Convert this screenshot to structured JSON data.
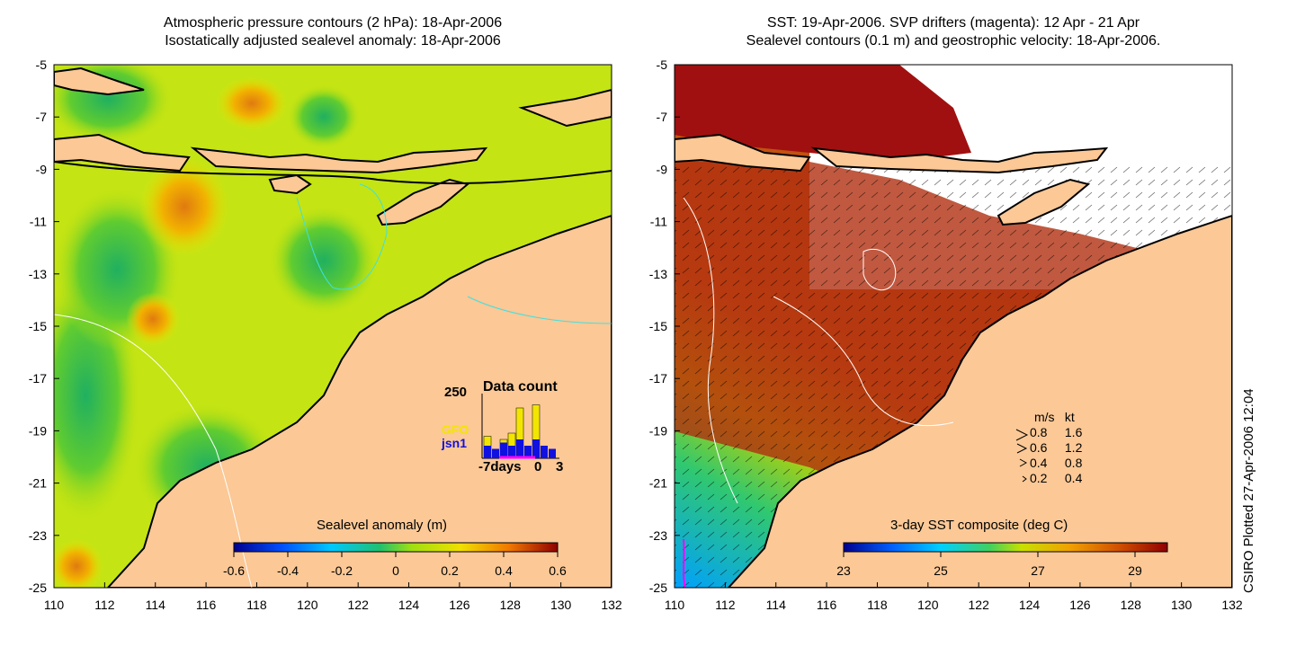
{
  "left_panel": {
    "title_line1": "Atmospheric pressure contours (2 hPa): 18-Apr-2006",
    "title_line2": "Isostatically adjusted sealevel anomaly: 18-Apr-2006",
    "colorbar_label": "Sealevel anomaly (m)",
    "colorbar_ticks": [
      "-0.6",
      "-0.4",
      "-0.2",
      "0",
      "0.2",
      "0.4",
      "0.6"
    ],
    "inset": {
      "title": "Data count",
      "ymax_label": "250",
      "series_labels": [
        "GFO",
        "jsn1"
      ],
      "xlabels": [
        "-7days",
        "0",
        "3"
      ],
      "colors": {
        "GFO": "#f2e600",
        "jsn1": "#1010e0"
      }
    }
  },
  "right_panel": {
    "title_line1": "SST: 19-Apr-2006. SVP drifters (magenta): 12 Apr - 21 Apr",
    "title_line2": "Sealevel contours (0.1 m) and geostrophic velocity: 18-Apr-2006.",
    "colorbar_label": "3-day SST composite (deg C)",
    "colorbar_ticks": [
      "23",
      "25",
      "27",
      "29"
    ],
    "velocity_legend": {
      "header_ms": "m/s",
      "header_kt": "kt",
      "rows": [
        {
          "ms": "0.8",
          "kt": "1.6"
        },
        {
          "ms": "0.6",
          "kt": "1.2"
        },
        {
          "ms": "0.4",
          "kt": "0.8"
        },
        {
          "ms": "0.2",
          "kt": "0.4"
        }
      ]
    }
  },
  "axes": {
    "x_ticks": [
      "110",
      "112",
      "114",
      "116",
      "118",
      "120",
      "122",
      "124",
      "126",
      "128",
      "130",
      "132"
    ],
    "y_ticks": [
      "-5",
      "-7",
      "-9",
      "-11",
      "-13",
      "-15",
      "-17",
      "-19",
      "-21",
      "-23",
      "-25"
    ]
  },
  "side_note": "CSIRO Plotted 27-Apr-2006 12:04",
  "colors": {
    "land": "#fbc896",
    "coast": "#000000"
  }
}
